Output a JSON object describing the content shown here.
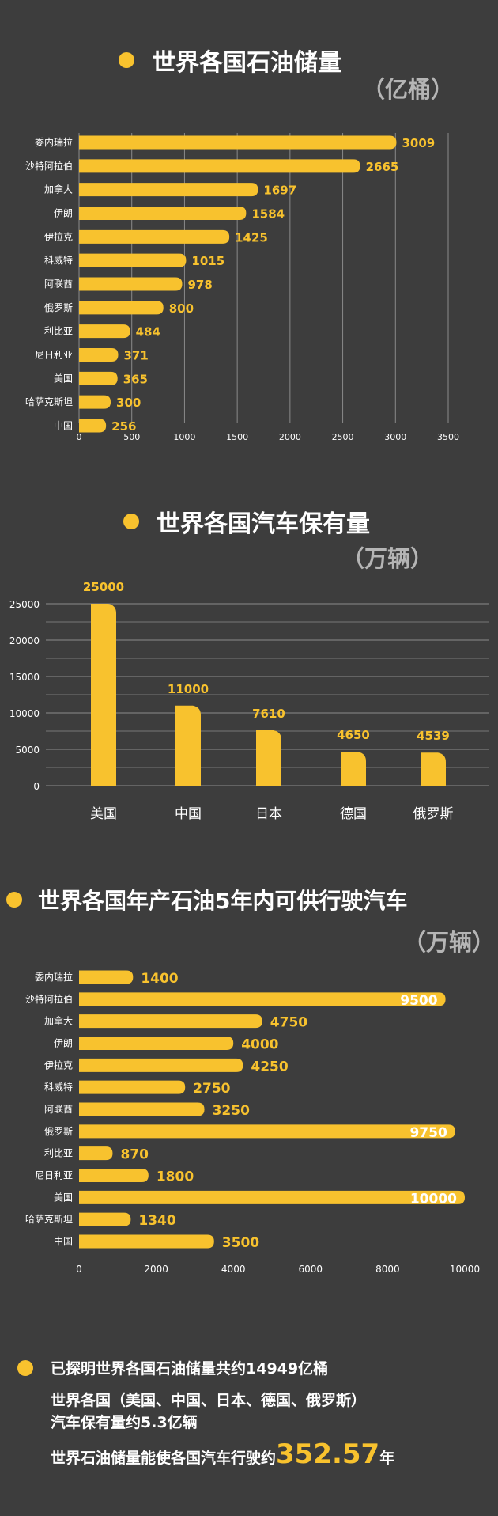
{
  "colors": {
    "background": "#3d3d3d",
    "bar": "#f8c22e",
    "text": "#ffffff",
    "unit": "#b5b5b5",
    "grid": "#8a8a8a"
  },
  "chart_data": [
    {
      "type": "bar",
      "orientation": "horizontal",
      "title": "世界各国石油储量",
      "unit": "（亿桶）",
      "categories": [
        "委内瑞拉",
        "沙特阿拉伯",
        "加拿大",
        "伊朗",
        "伊拉克",
        "科威特",
        "阿联酋",
        "俄罗斯",
        "利比亚",
        "尼日利亚",
        "美国",
        "哈萨克斯坦",
        "中国"
      ],
      "values": [
        3009,
        2665,
        1697,
        1584,
        1425,
        1015,
        978,
        800,
        484,
        371,
        365,
        300,
        256
      ],
      "xlim": [
        0,
        3500
      ],
      "ticks": [
        "0",
        "500",
        "1000",
        "1500",
        "2000",
        "2500",
        "3000",
        "3500"
      ],
      "grid": true
    },
    {
      "type": "bar",
      "orientation": "vertical",
      "title": "世界各国汽车保有量",
      "unit": "（万辆）",
      "categories": [
        "美国",
        "中国",
        "日本",
        "德国",
        "俄罗斯"
      ],
      "values": [
        25000,
        11000,
        7610,
        4650,
        4539
      ],
      "ylim": [
        0,
        25000
      ],
      "ticks": [
        "0",
        "5000",
        "10000",
        "15000",
        "20000",
        "25000"
      ],
      "grid": true
    },
    {
      "type": "bar",
      "orientation": "horizontal",
      "title": "世界各国年产石油5年内可供行驶汽车",
      "unit": "（万辆）",
      "categories": [
        "委内瑞拉",
        "沙特阿拉伯",
        "加拿大",
        "伊朗",
        "伊拉克",
        "科威特",
        "阿联酋",
        "俄罗斯",
        "利比亚",
        "尼日利亚",
        "美国",
        "哈萨克斯坦",
        "中国"
      ],
      "values": [
        1400,
        9500,
        4750,
        4000,
        4250,
        2750,
        3250,
        9750,
        870,
        1800,
        10000,
        1340,
        3500
      ],
      "xlim": [
        0,
        10000
      ],
      "ticks": [
        "0",
        "2000",
        "4000",
        "6000",
        "8000",
        "10000"
      ],
      "grid": false
    }
  ],
  "summary": {
    "line1": "已探明世界各国石油储量共约14949亿桶",
    "line2": "世界各国（美国、中国、日本、德国、俄罗斯）",
    "line3": "汽车保有量约5.3亿辆",
    "line4_prefix": "世界石油储量能使各国汽车行驶约",
    "line4_value": "352.57",
    "line4_suffix": "年"
  }
}
